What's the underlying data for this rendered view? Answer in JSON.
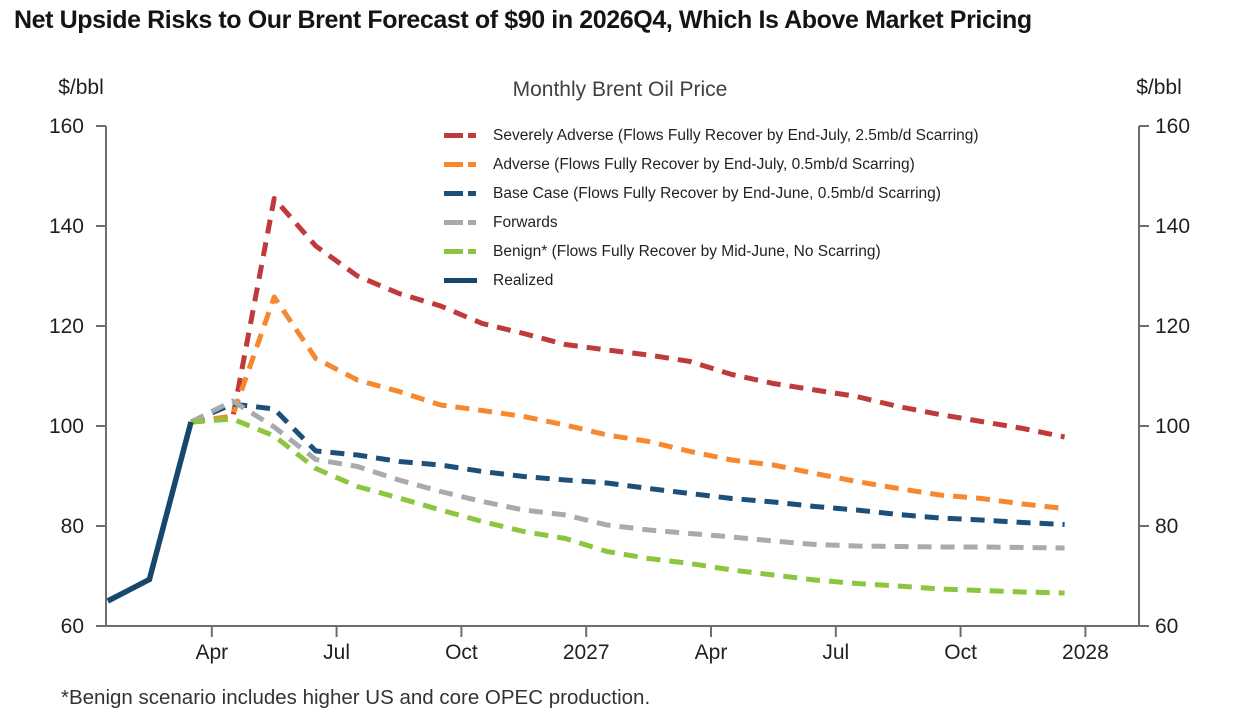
{
  "page_title": "Net Upside Risks to Our Brent Forecast of $90 in 2026Q4, Which Is Above Market Pricing",
  "chart": {
    "title": "Monthly Brent Oil Price",
    "y_unit_left": "$/bbl",
    "y_unit_right": "$/bbl",
    "footnote": "*Benign scenario includes higher US and core OPEC production."
  },
  "chart_data": {
    "type": "line",
    "title": "Monthly Brent Oil Price",
    "y_unit": "$/bbl",
    "ylim": [
      60,
      160
    ],
    "y_ticks": [
      60,
      80,
      100,
      120,
      140,
      160
    ],
    "x_ticks": [
      {
        "label": "Apr",
        "month": 3
      },
      {
        "label": "Jul",
        "month": 6
      },
      {
        "label": "Oct",
        "month": 9
      },
      {
        "label": "2027",
        "month": 12
      },
      {
        "label": "Apr",
        "month": 15
      },
      {
        "label": "Jul",
        "month": 18
      },
      {
        "label": "Oct",
        "month": 21
      },
      {
        "label": "2028",
        "month": 24
      }
    ],
    "x_note": "month index 0 = Jan 2026; monthly values plotted at month centers",
    "axis_color": "#6d6e71",
    "legend_position": "top-center-inside",
    "grid": false,
    "series": [
      {
        "name": "Severely Adverse (Flows Fully Recover by End-July, 2.5mb/d Scarring)",
        "color": "#bf3a3a",
        "style": "dashed",
        "start_month": 2,
        "values": [
          100.8,
          101.5,
          145.5,
          136.0,
          130.0,
          126.5,
          124.0,
          120.5,
          118.5,
          116.3,
          115.2,
          114.2,
          112.9,
          110.3,
          108.5,
          107.2,
          105.9,
          103.9,
          102.3,
          100.9,
          99.5,
          97.8
        ]
      },
      {
        "name": "Adverse (Flows Fully Recover by End-July, 0.5mb/d Scarring)",
        "color": "#f6882f",
        "style": "dashed",
        "start_month": 2,
        "values": [
          100.8,
          102.0,
          125.8,
          113.5,
          109.2,
          106.9,
          104.2,
          103.1,
          101.9,
          100.2,
          98.2,
          96.9,
          94.9,
          93.2,
          92.2,
          90.5,
          88.9,
          87.5,
          86.2,
          85.5,
          84.4,
          83.5
        ]
      },
      {
        "name": "Base Case (Flows Fully Recover by End-June, 0.5mb/d Scarring)",
        "color": "#1d4f78",
        "style": "dashed",
        "start_month": 2,
        "values": [
          100.8,
          104.4,
          103.4,
          95.0,
          94.2,
          92.9,
          92.2,
          90.9,
          89.9,
          89.2,
          88.6,
          87.5,
          86.5,
          85.5,
          84.8,
          83.9,
          83.2,
          82.3,
          81.6,
          81.2,
          80.7,
          80.3
        ]
      },
      {
        "name": "Forwards",
        "color": "#a8aaad",
        "style": "dashed",
        "start_month": 2,
        "values": [
          100.8,
          105.0,
          99.8,
          93.3,
          91.9,
          89.2,
          86.9,
          84.9,
          83.2,
          82.2,
          80.2,
          79.2,
          78.5,
          77.8,
          77.0,
          76.3,
          76.0,
          75.9,
          75.8,
          75.8,
          75.7,
          75.6
        ]
      },
      {
        "name": "Benign* (Flows Fully Recover by Mid-June, No Scarring)",
        "color": "#8cc63e",
        "style": "dashed",
        "start_month": 2,
        "values": [
          100.8,
          101.4,
          98.0,
          91.5,
          87.9,
          85.6,
          83.2,
          80.9,
          78.9,
          77.5,
          74.9,
          73.5,
          72.5,
          71.2,
          70.2,
          69.2,
          68.5,
          68.0,
          67.4,
          67.1,
          66.8,
          66.6
        ]
      },
      {
        "name": "Realized",
        "color": "#17476d",
        "style": "solid",
        "start_month": 0,
        "values": [
          65.0,
          69.3,
          100.8
        ]
      }
    ]
  }
}
